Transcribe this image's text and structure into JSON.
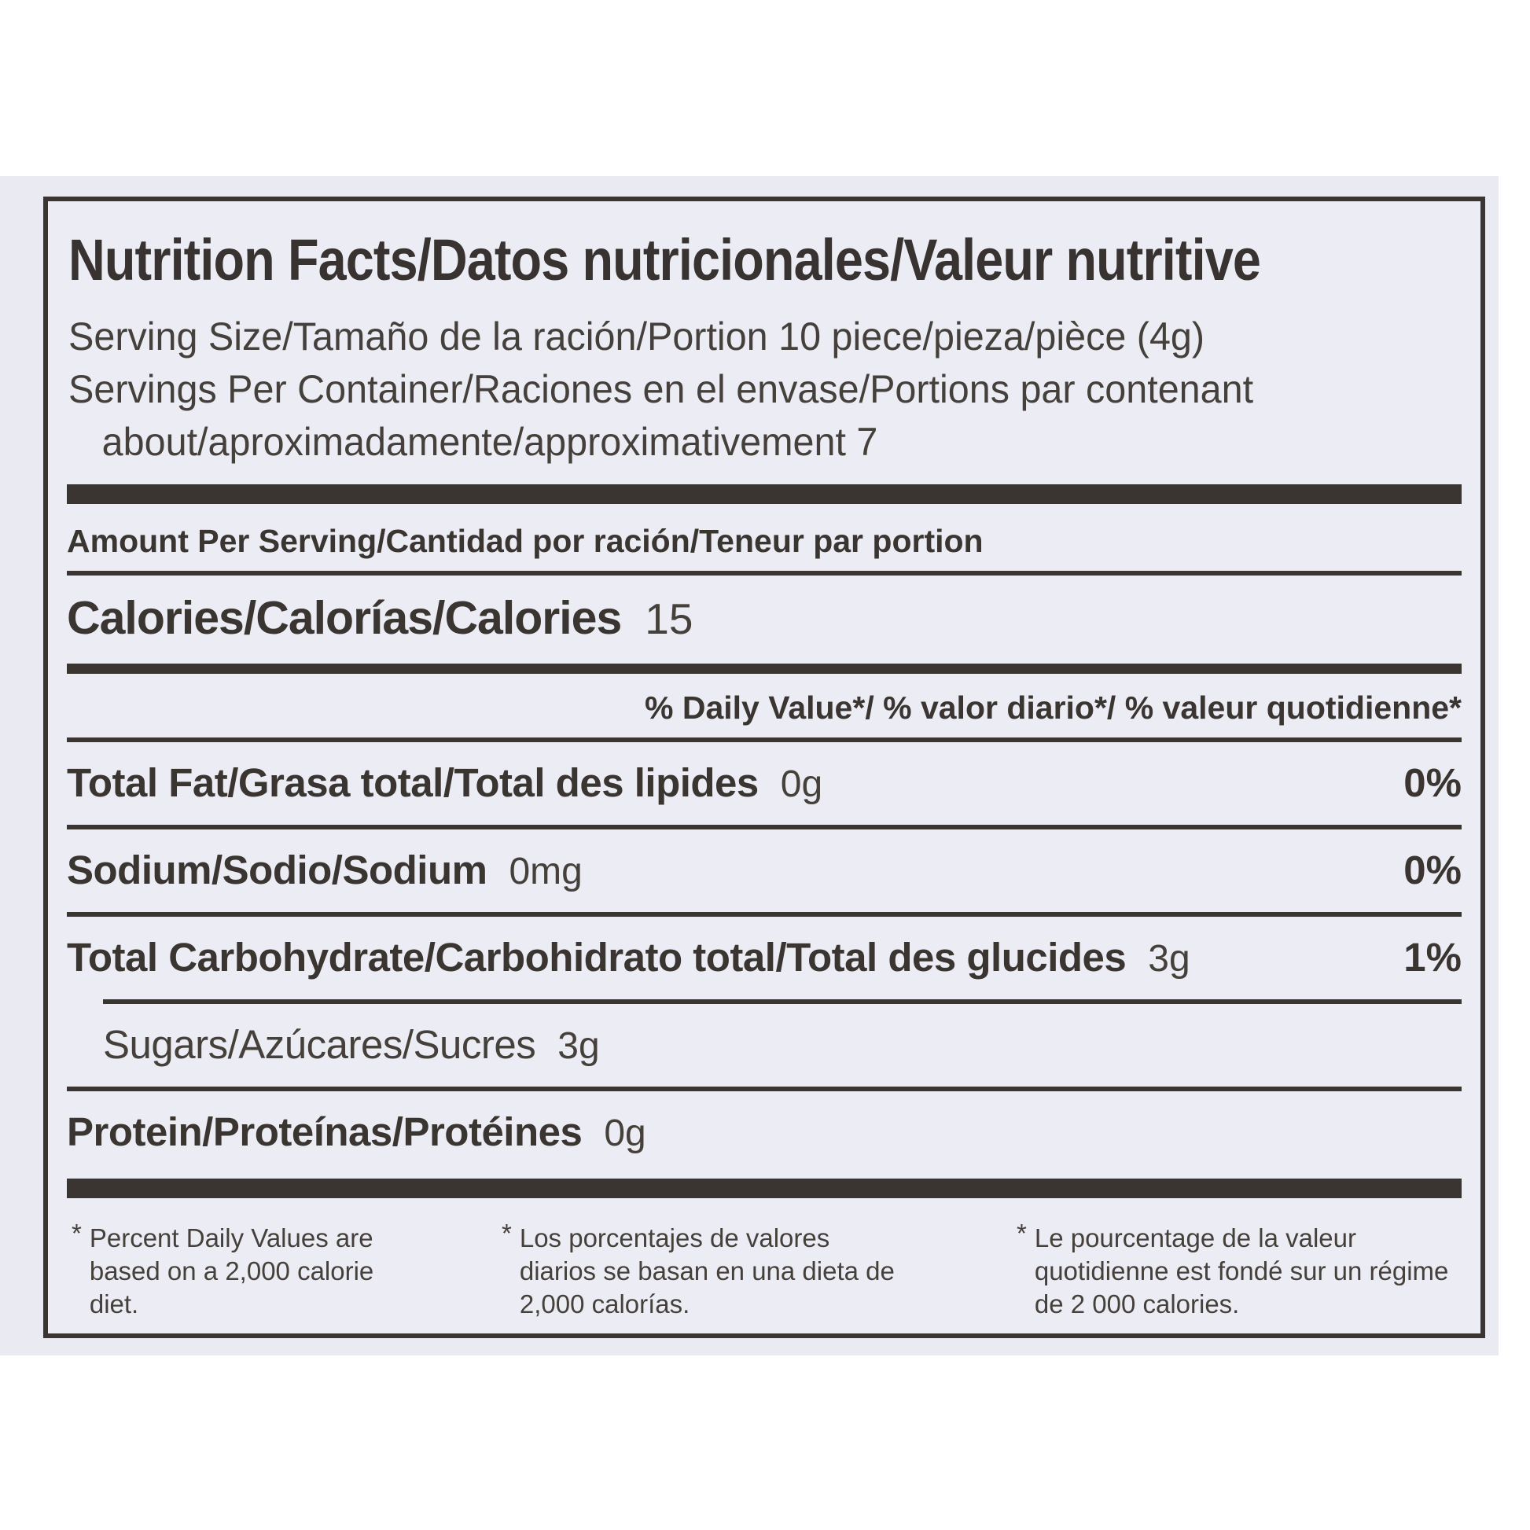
{
  "label": {
    "title": "Nutrition Facts/Datos nutricionales/Valeur nutritive",
    "serving_size": "Serving Size/Tamaño de la ración/Portion 10 piece/pieza/pièce (4g)",
    "servings_per_container": "Servings Per Container/Raciones en el envase/Portions par contenant",
    "servings_about": "about/aproximadamente/approximativement 7",
    "amount_per_serving": "Amount Per Serving/Cantidad por ración/Teneur par portion",
    "calories_label": "Calories/Calorías/Calories",
    "calories_value": "15",
    "daily_value_header": "% Daily Value*/ % valor diario*/ % valeur quotidienne*",
    "rows": [
      {
        "label": "Total Fat/Grasa total/Total des lipides",
        "value": "0g",
        "dv": "0%"
      },
      {
        "label": "Sodium/Sodio/Sodium",
        "value": "0mg",
        "dv": "0%"
      },
      {
        "label": "Total Carbohydrate/Carbohidrato total/Total des glucides",
        "value": "3g",
        "dv": "1%"
      },
      {
        "label": "Sugars/Azúcares/Sucres",
        "value": "3g",
        "dv": ""
      },
      {
        "label": "Protein/Proteínas/Protéines",
        "value": "0g",
        "dv": ""
      }
    ],
    "footnotes": [
      {
        "marker": "*",
        "text": "Percent Daily Values are based on a 2,000 calorie diet."
      },
      {
        "marker": "*",
        "text": "Los porcentajes de valores diarios se basan en una dieta de 2,000 calorías."
      },
      {
        "marker": "*",
        "text": "Le pourcentage de la valeur quotidienne est fondé sur un régime de 2 000 calories."
      }
    ],
    "colors": {
      "text": "#3b3531",
      "panel_background": "#ebecf4",
      "scan_background": "#e9eaf2",
      "page_background": "#ffffff"
    }
  }
}
